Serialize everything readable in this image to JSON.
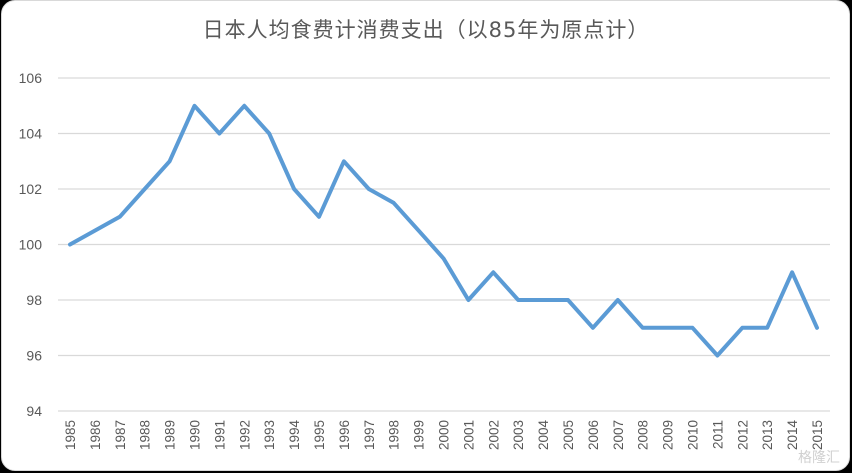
{
  "chart_data": {
    "type": "line",
    "title": "日本人均食费计消费支出（以85年为原点计）",
    "xlabel": "",
    "ylabel": "",
    "ylim": [
      94,
      106
    ],
    "yticks": [
      94,
      96,
      98,
      100,
      102,
      104,
      106
    ],
    "grid": true,
    "legend": null,
    "categories": [
      "1985",
      "1986",
      "1987",
      "1988",
      "1989",
      "1990",
      "1991",
      "1992",
      "1993",
      "1994",
      "1995",
      "1996",
      "1997",
      "1998",
      "1999",
      "2000",
      "2001",
      "2002",
      "2003",
      "2004",
      "2005",
      "2006",
      "2007",
      "2008",
      "2009",
      "2010",
      "2011",
      "2012",
      "2013",
      "2014",
      "2015"
    ],
    "series": [
      {
        "name": "人均食费计消费支出",
        "color": "#5b9bd5",
        "values": [
          100,
          100.5,
          101,
          102,
          103,
          105,
          104,
          105,
          104,
          102,
          101,
          103,
          102,
          101.5,
          100.5,
          99.5,
          98,
          99,
          98,
          98,
          98,
          97,
          98,
          97,
          97,
          97,
          96,
          97,
          97,
          99,
          97
        ]
      }
    ]
  },
  "header": {
    "title": "日本人均食费计消费支出（以85年为原点计）"
  },
  "watermark": "格隆汇",
  "colors": {
    "line": "#5b9bd5",
    "grid": "#d9d9d9",
    "text": "#595959"
  }
}
